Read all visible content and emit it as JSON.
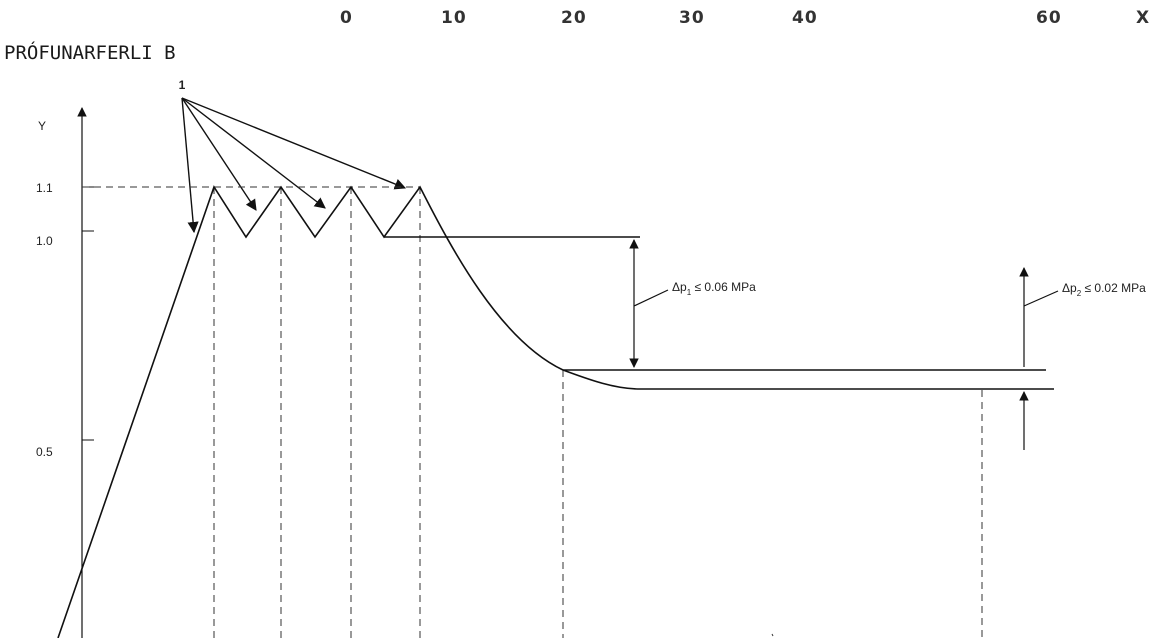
{
  "title": "PRÓFUNARFERLI B",
  "x_axis": {
    "name": "X",
    "ticks": [
      "0",
      "10",
      "20",
      "30",
      "40",
      "60"
    ]
  },
  "y_axis": {
    "name": "Y",
    "ticks": [
      "1.1",
      "1.0",
      "0.5"
    ]
  },
  "callout_label": "1",
  "annotations": {
    "dp1": {
      "prefix": "Δp",
      "sub": "1",
      "suffix": " ≤ 0.06 MPa"
    },
    "dp2": {
      "prefix": "Δp",
      "sub": "2",
      "suffix": " ≤ 0.02 MPa"
    }
  },
  "chart_data": {
    "type": "line",
    "x_tick_labels": [
      "0",
      "10",
      "20",
      "30",
      "40",
      "60"
    ],
    "y_tick_labels": [
      "1.1",
      "1.0",
      "0.5"
    ],
    "pressure_profile_y": {
      "start": 0,
      "peak": 1.1,
      "trough": 1.0,
      "after_drop_upper": 0.68,
      "after_drop_lower": 0.64
    },
    "peaks_count": 4,
    "troughs_count": 3,
    "limits": [
      "Δp1 ≤ 0.06 MPa",
      "Δp2 ≤ 0.02 MPa"
    ]
  }
}
